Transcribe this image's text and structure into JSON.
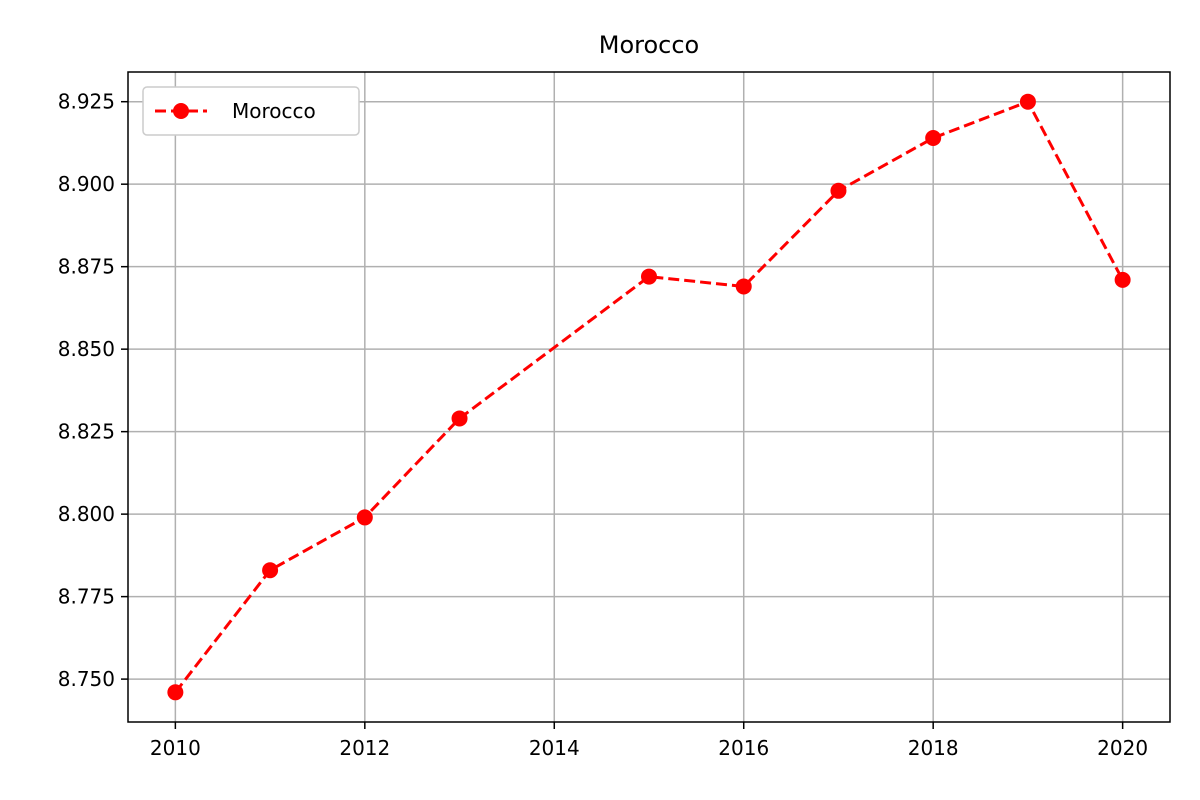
{
  "chart_data": {
    "type": "line",
    "title": "Morocco",
    "xlabel": "",
    "ylabel": "",
    "x": [
      2010,
      2011,
      2012,
      2013,
      2015,
      2016,
      2017,
      2018,
      2019,
      2020
    ],
    "series": [
      {
        "name": "Morocco",
        "values": [
          8.746,
          8.783,
          8.799,
          8.829,
          8.872,
          8.869,
          8.898,
          8.914,
          8.925,
          8.871
        ],
        "color": "#ff0000",
        "line_style": "dashed",
        "marker": "circle"
      }
    ],
    "xlim": [
      2009.5,
      2020.5
    ],
    "ylim": [
      8.737,
      8.934
    ],
    "x_ticks": [
      2010,
      2012,
      2014,
      2016,
      2018,
      2020
    ],
    "x_tick_labels": [
      "2010",
      "2012",
      "2014",
      "2016",
      "2018",
      "2020"
    ],
    "y_ticks": [
      8.75,
      8.775,
      8.8,
      8.825,
      8.85,
      8.875,
      8.9,
      8.925
    ],
    "y_tick_labels": [
      "8.750",
      "8.775",
      "8.800",
      "8.825",
      "8.850",
      "8.875",
      "8.900",
      "8.925"
    ],
    "grid": true,
    "legend_position": "top-left"
  }
}
